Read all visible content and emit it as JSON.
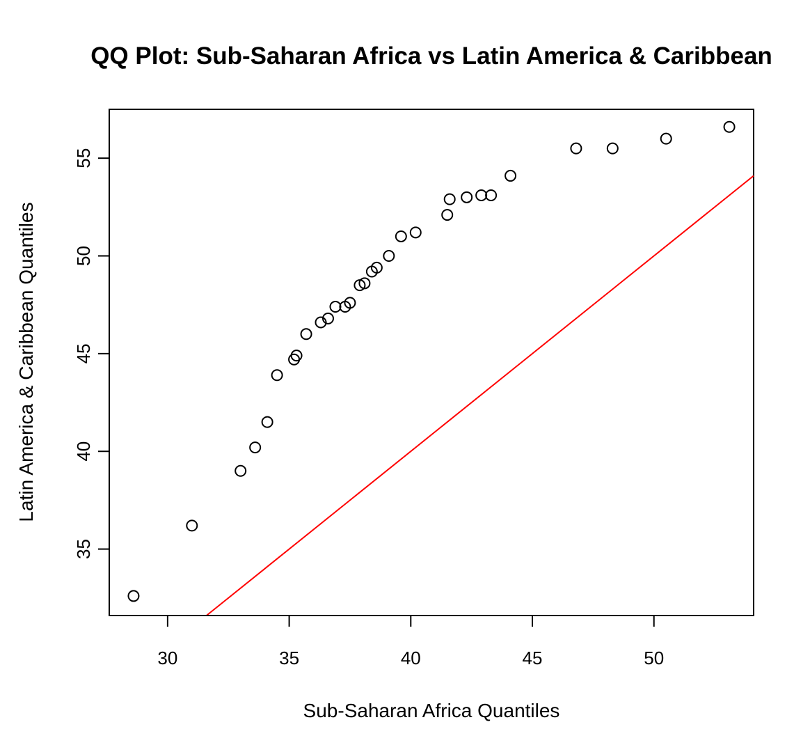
{
  "chart_data": {
    "type": "scatter",
    "title": "QQ Plot: Sub-Saharan Africa vs Latin America & Caribbean",
    "xlabel": "Sub-Saharan Africa Quantiles",
    "ylabel": "Latin America & Caribbean Quantiles",
    "xlim": [
      27.6,
      54.1
    ],
    "ylim": [
      31.6,
      57.5
    ],
    "xticks": [
      30,
      35,
      40,
      45,
      50
    ],
    "yticks": [
      35,
      40,
      45,
      50,
      55
    ],
    "grid": false,
    "legend": "none",
    "points": [
      {
        "x": 28.6,
        "y": 32.6
      },
      {
        "x": 31.0,
        "y": 36.2
      },
      {
        "x": 33.0,
        "y": 39.0
      },
      {
        "x": 33.6,
        "y": 40.2
      },
      {
        "x": 34.1,
        "y": 41.5
      },
      {
        "x": 34.5,
        "y": 43.9
      },
      {
        "x": 35.2,
        "y": 44.7
      },
      {
        "x": 35.3,
        "y": 44.9
      },
      {
        "x": 35.7,
        "y": 46.0
      },
      {
        "x": 36.3,
        "y": 46.6
      },
      {
        "x": 36.6,
        "y": 46.8
      },
      {
        "x": 36.9,
        "y": 47.4
      },
      {
        "x": 37.3,
        "y": 47.4
      },
      {
        "x": 37.5,
        "y": 47.6
      },
      {
        "x": 37.9,
        "y": 48.5
      },
      {
        "x": 38.1,
        "y": 48.6
      },
      {
        "x": 38.4,
        "y": 49.2
      },
      {
        "x": 38.6,
        "y": 49.4
      },
      {
        "x": 39.1,
        "y": 50.0
      },
      {
        "x": 39.6,
        "y": 51.0
      },
      {
        "x": 40.2,
        "y": 51.2
      },
      {
        "x": 41.5,
        "y": 52.1
      },
      {
        "x": 41.6,
        "y": 52.9
      },
      {
        "x": 42.3,
        "y": 53.0
      },
      {
        "x": 42.9,
        "y": 53.1
      },
      {
        "x": 43.3,
        "y": 53.1
      },
      {
        "x": 44.1,
        "y": 54.1
      },
      {
        "x": 46.8,
        "y": 55.5
      },
      {
        "x": 48.3,
        "y": 55.5
      },
      {
        "x": 50.5,
        "y": 56.0
      },
      {
        "x": 53.1,
        "y": 56.6
      }
    ],
    "reference_line": {
      "slope": 1,
      "intercept": 0,
      "color": "#ff0000"
    },
    "point_color": "#000000"
  }
}
